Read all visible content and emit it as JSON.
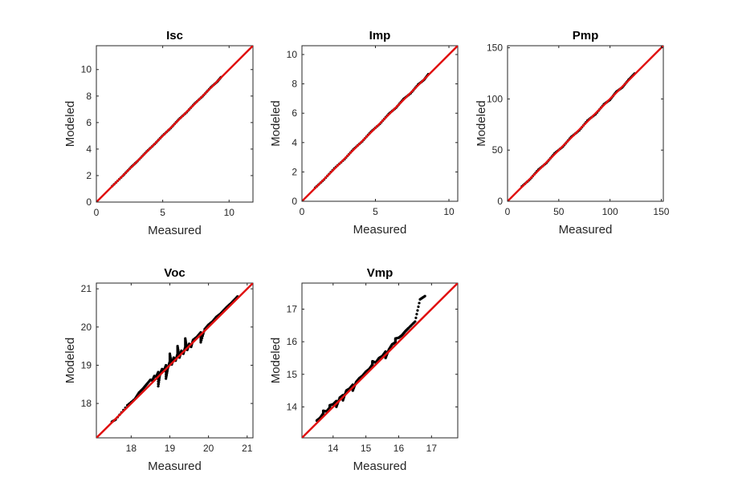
{
  "chart_data": [
    {
      "type": "scatter",
      "title": "Isc",
      "xlabel": "Measured",
      "ylabel": "Modeled",
      "xlim": [
        0,
        11.8
      ],
      "ylim": [
        0,
        11.8
      ],
      "xticks": [
        0,
        5,
        10
      ],
      "yticks": [
        0,
        2,
        4,
        6,
        8,
        10
      ],
      "grid": false,
      "series": [
        {
          "color": "#000000",
          "x": [
            1.2,
            2.0,
            2.6,
            3.1,
            3.8,
            4.4,
            5.0,
            5.6,
            6.2,
            6.8,
            7.4,
            8.0,
            8.6,
            9.1,
            9.4
          ],
          "y": [
            1.21,
            1.99,
            2.62,
            3.09,
            3.82,
            4.39,
            5.02,
            5.58,
            6.23,
            6.78,
            7.43,
            7.98,
            8.63,
            9.08,
            9.43
          ]
        }
      ],
      "reference_line": {
        "color": "#e01010",
        "x": [
          0,
          11.8
        ],
        "y": [
          0,
          11.8
        ]
      }
    },
    {
      "type": "scatter",
      "title": "Imp",
      "xlabel": "Measured",
      "ylabel": "Modeled",
      "xlim": [
        0,
        10.6
      ],
      "ylim": [
        0,
        10.6
      ],
      "xticks": [
        0,
        5,
        10
      ],
      "yticks": [
        0,
        2,
        4,
        6,
        8,
        10
      ],
      "grid": false,
      "series": [
        {
          "color": "#000000",
          "x": [
            0.9,
            1.5,
            2.2,
            2.9,
            3.5,
            4.1,
            4.7,
            5.3,
            5.9,
            6.4,
            6.9,
            7.4,
            7.9,
            8.3,
            8.6
          ],
          "y": [
            0.92,
            1.48,
            2.24,
            2.87,
            3.54,
            4.08,
            4.74,
            5.27,
            5.95,
            6.37,
            6.96,
            7.36,
            7.95,
            8.27,
            8.66
          ]
        }
      ],
      "reference_line": {
        "color": "#e01010",
        "x": [
          0,
          10.6
        ],
        "y": [
          0,
          10.6
        ]
      }
    },
    {
      "type": "scatter",
      "title": "Pmp",
      "xlabel": "Measured",
      "ylabel": "Modeled",
      "xlim": [
        0,
        152
      ],
      "ylim": [
        0,
        152
      ],
      "xticks": [
        0,
        50,
        100,
        150
      ],
      "yticks": [
        0,
        50,
        100,
        150
      ],
      "grid": false,
      "series": [
        {
          "color": "#000000",
          "x": [
            14,
            22,
            30,
            38,
            46,
            54,
            62,
            70,
            78,
            86,
            94,
            100,
            106,
            112,
            118,
            124
          ],
          "y": [
            14.5,
            21.6,
            30.8,
            37.5,
            46.9,
            53.4,
            62.8,
            69.3,
            78.9,
            85.2,
            94.8,
            99.2,
            106.9,
            111.3,
            118.6,
            124.8
          ]
        }
      ],
      "reference_line": {
        "color": "#e01010",
        "x": [
          0,
          152
        ],
        "y": [
          0,
          152
        ]
      }
    },
    {
      "type": "scatter",
      "title": "Voc",
      "xlabel": "Measured",
      "ylabel": "Modeled",
      "xlim": [
        17.1,
        21.15
      ],
      "ylim": [
        17.1,
        21.15
      ],
      "xticks": [
        18,
        19,
        20,
        21
      ],
      "yticks": [
        18,
        19,
        20,
        21
      ],
      "grid": false,
      "series": [
        {
          "color": "#000000",
          "x": [
            17.5,
            17.6,
            17.9,
            18.1,
            18.2,
            18.3,
            18.4,
            18.5,
            18.55,
            18.6,
            18.65,
            18.7,
            18.75,
            18.8,
            18.85,
            18.9,
            18.95,
            19.0,
            19.05,
            19.1,
            19.15,
            19.2,
            19.25,
            19.3,
            19.35,
            19.4,
            19.45,
            19.5,
            19.55,
            19.6,
            19.7,
            19.8,
            19.9,
            20.0,
            20.1,
            20.2,
            20.3,
            20.45,
            20.6,
            20.75,
            19.0,
            19.2,
            19.4,
            18.7,
            18.9,
            19.8
          ],
          "y": [
            17.52,
            17.58,
            17.95,
            18.12,
            18.28,
            18.38,
            18.5,
            18.62,
            18.6,
            18.72,
            18.7,
            18.82,
            18.78,
            18.9,
            18.86,
            19.0,
            18.93,
            19.1,
            19.02,
            19.2,
            19.12,
            19.3,
            19.2,
            19.38,
            19.3,
            19.48,
            19.4,
            19.56,
            19.48,
            19.66,
            19.74,
            19.86,
            19.94,
            20.06,
            20.14,
            20.26,
            20.34,
            20.5,
            20.64,
            20.8,
            19.3,
            19.5,
            19.7,
            18.45,
            18.65,
            19.6
          ]
        }
      ],
      "reference_line": {
        "color": "#e01010",
        "x": [
          17.1,
          21.15
        ],
        "y": [
          17.1,
          21.15
        ]
      }
    },
    {
      "type": "scatter",
      "title": "Vmp",
      "xlabel": "Measured",
      "ylabel": "Modeled",
      "xlim": [
        13.05,
        17.8
      ],
      "ylim": [
        13.05,
        17.8
      ],
      "xticks": [
        14,
        15,
        16,
        17
      ],
      "yticks": [
        14,
        15,
        16,
        17
      ],
      "grid": false,
      "series": [
        {
          "color": "#000000",
          "x": [
            13.5,
            13.6,
            13.7,
            13.8,
            13.9,
            14.0,
            14.1,
            14.2,
            14.3,
            14.4,
            14.5,
            14.6,
            14.7,
            14.8,
            14.9,
            15.0,
            15.1,
            15.2,
            15.3,
            15.4,
            15.5,
            15.6,
            15.7,
            15.8,
            15.9,
            16.0,
            16.1,
            16.2,
            16.3,
            16.5,
            16.65,
            16.8,
            13.7,
            13.9,
            14.1,
            14.3,
            14.6,
            15.2,
            15.6,
            15.9
          ],
          "y": [
            13.58,
            13.66,
            13.8,
            13.86,
            13.98,
            14.08,
            14.18,
            14.28,
            14.36,
            14.5,
            14.56,
            14.68,
            14.76,
            14.88,
            14.96,
            15.08,
            15.16,
            15.3,
            15.36,
            15.5,
            15.56,
            15.7,
            15.76,
            15.92,
            15.98,
            16.12,
            16.2,
            16.32,
            16.42,
            16.62,
            17.3,
            17.4,
            13.88,
            14.05,
            14.0,
            14.2,
            14.5,
            15.4,
            15.5,
            16.1
          ]
        }
      ],
      "reference_line": {
        "color": "#e01010",
        "x": [
          13.05,
          17.8
        ],
        "y": [
          13.05,
          17.8
        ]
      }
    }
  ]
}
